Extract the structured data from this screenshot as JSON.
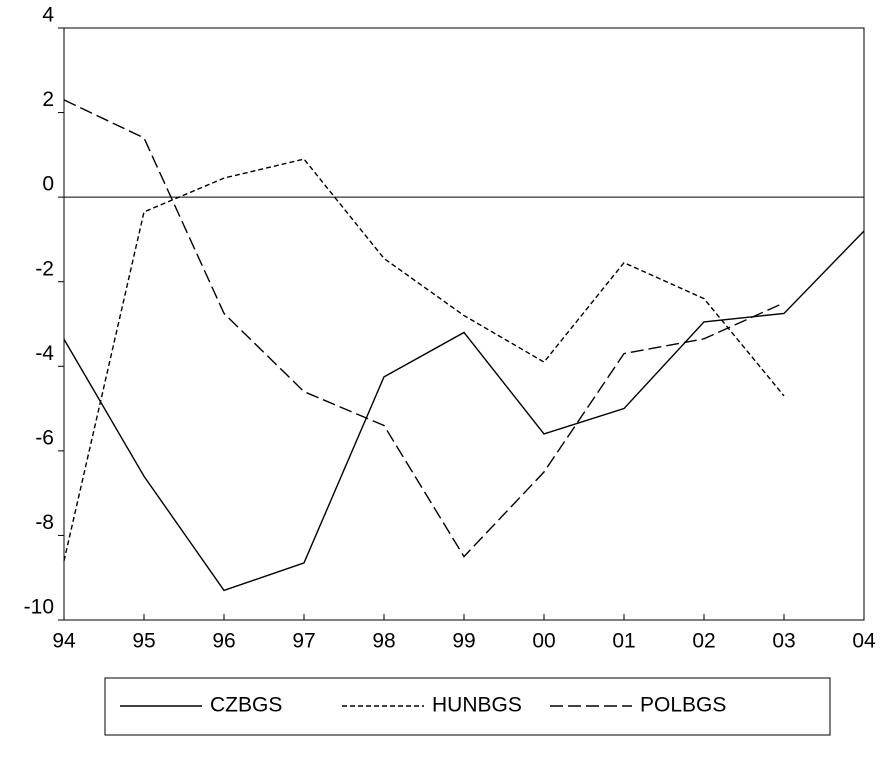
{
  "chart_data": {
    "type": "line",
    "categories": [
      "94",
      "95",
      "96",
      "97",
      "98",
      "99",
      "00",
      "01",
      "02",
      "03",
      "04"
    ],
    "series": [
      {
        "name": "CZBGS",
        "color": "#000000",
        "dash": "none",
        "values": [
          -3.36,
          -6.6,
          -9.3,
          -8.65,
          -4.25,
          -3.2,
          -5.6,
          -5.0,
          -2.95,
          -2.75,
          -0.8
        ]
      },
      {
        "name": "HUNBGS",
        "color": "#000000",
        "dash": "5,3",
        "values": [
          -8.6,
          -0.35,
          0.45,
          0.9,
          -1.45,
          -2.8,
          -3.9,
          -1.55,
          -2.4,
          -4.7,
          null
        ]
      },
      {
        "name": "POLBGS",
        "color": "#000000",
        "dash": "13,5",
        "values": [
          2.3,
          1.4,
          -2.75,
          -4.6,
          -5.4,
          -8.5,
          -6.5,
          -3.7,
          -3.35,
          -2.5,
          null
        ]
      }
    ],
    "ylim": [
      -10,
      4
    ],
    "yticks": [
      4,
      2,
      0,
      -2,
      -4,
      -6,
      -8,
      -10
    ],
    "zero_line": true,
    "legend": "bottom"
  }
}
